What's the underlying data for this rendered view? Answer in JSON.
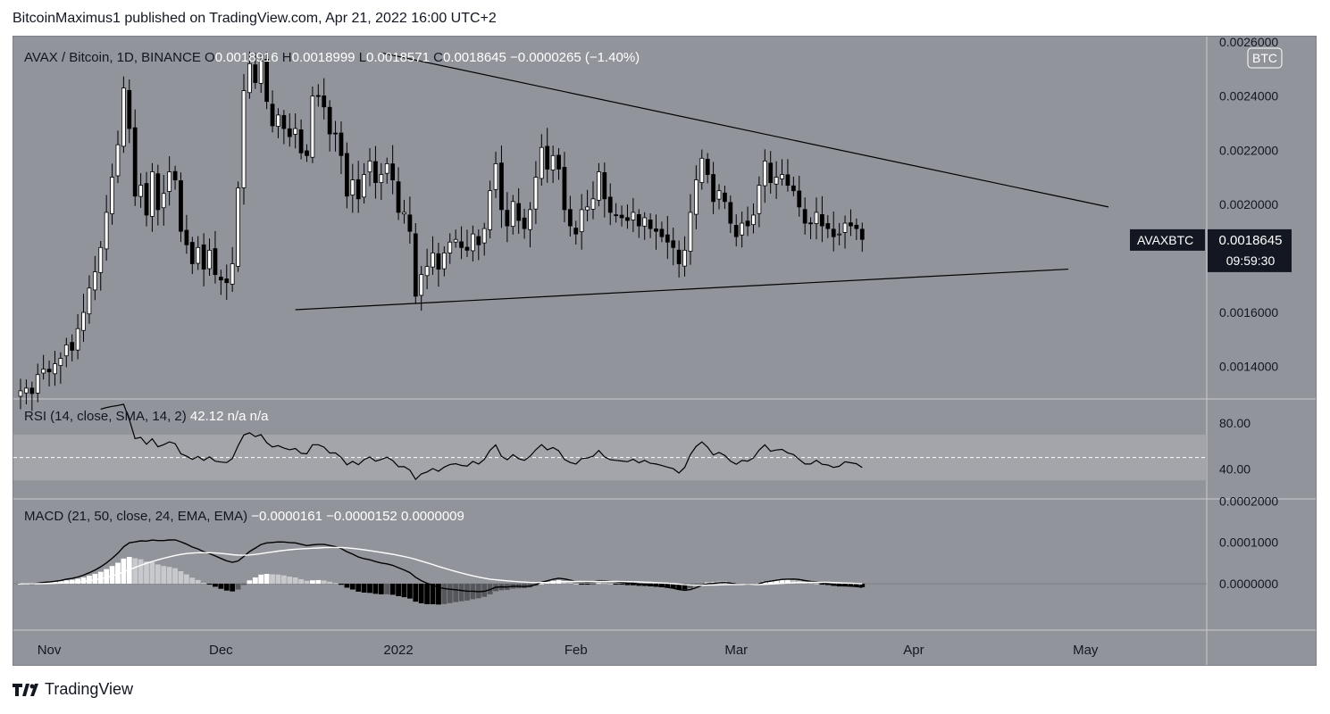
{
  "header": {
    "publisher_line": "BitcoinMaximus1 published on TradingView.com, Apr 21, 2022 16:00 UTC+2"
  },
  "footer": {
    "brand": "TradingView"
  },
  "colors": {
    "panel_bg": "#92949b",
    "up": "#ffffff",
    "down": "#000000",
    "text": "#131722",
    "hist_light": "#ffffff",
    "hist_dark": "#000000"
  },
  "chart_data": {
    "type": "candlestick",
    "symbol_line": "AVAX / Bitcoin, 1D, BINANCE",
    "ohlc": {
      "o_label": "O",
      "o": "0.0018916",
      "h_label": "H",
      "h": "0.0018999",
      "l_label": "L",
      "l": "0.0018571",
      "c_label": "C",
      "c": "0.0018645",
      "change": "−0.0000265 (−1.40%)"
    },
    "currency_badge": "BTC",
    "price_tag": {
      "symbol": "AVAXBTC",
      "price": "0.0018645",
      "countdown": "09:59:30"
    },
    "price_ticks": [
      "0.0026000",
      "0.0024000",
      "0.0022000",
      "0.0020000",
      "0.0016000",
      "0.0014000"
    ],
    "price_tick_values": [
      0.0026,
      0.0024,
      0.0022,
      0.002,
      0.0016,
      0.0014
    ],
    "price_range": [
      0.00128,
      0.00262
    ],
    "x_labels": [
      "Nov",
      "Dec",
      "2022",
      "Feb",
      "Mar",
      "Apr",
      "May"
    ],
    "x_label_index": [
      5,
      35,
      66,
      97,
      125,
      156,
      186
    ],
    "day_count": 201,
    "closes": [
      0.00131,
      0.00132,
      0.0013,
      0.00137,
      0.00139,
      0.00138,
      0.00141,
      0.00143,
      0.00148,
      0.00146,
      0.00154,
      0.0016,
      0.00169,
      0.00175,
      0.00184,
      0.00197,
      0.0021,
      0.00222,
      0.00243,
      0.00228,
      0.00203,
      0.00207,
      0.00196,
      0.00212,
      0.00198,
      0.00204,
      0.00212,
      0.00209,
      0.0019,
      0.00185,
      0.00178,
      0.00184,
      0.00176,
      0.00183,
      0.00174,
      0.00172,
      0.00171,
      0.00178,
      0.00206,
      0.00242,
      0.00252,
      0.00245,
      0.00253,
      0.00238,
      0.00229,
      0.00233,
      0.00228,
      0.00225,
      0.00228,
      0.00219,
      0.00218,
      0.0024,
      0.0024,
      0.00236,
      0.00226,
      0.00226,
      0.00218,
      0.00203,
      0.00209,
      0.00202,
      0.00211,
      0.00216,
      0.00208,
      0.00211,
      0.00215,
      0.00209,
      0.00197,
      0.00197,
      0.0019,
      0.00166,
      0.00174,
      0.00177,
      0.00182,
      0.00176,
      0.00182,
      0.00186,
      0.00187,
      0.00184,
      0.00183,
      0.00189,
      0.00185,
      0.00191,
      0.00205,
      0.00215,
      0.00198,
      0.00192,
      0.00201,
      0.00194,
      0.00191,
      0.00198,
      0.0021,
      0.00221,
      0.00213,
      0.00218,
      0.00213,
      0.00198,
      0.00192,
      0.00189,
      0.00198,
      0.00199,
      0.00202,
      0.00212,
      0.00202,
      0.00197,
      0.00196,
      0.00195,
      0.00194,
      0.00197,
      0.00192,
      0.00195,
      0.00191,
      0.0019,
      0.00188,
      0.00186,
      0.00184,
      0.00178,
      0.00183,
      0.00197,
      0.00209,
      0.00217,
      0.00211,
      0.00201,
      0.00205,
      0.00201,
      0.00193,
      0.00188,
      0.00193,
      0.00192,
      0.00196,
      0.00207,
      0.00216,
      0.00208,
      0.0021,
      0.00211,
      0.00207,
      0.00205,
      0.00199,
      0.00193,
      0.00193,
      0.00197,
      0.00192,
      0.00191,
      0.00188,
      0.00189,
      0.00193,
      0.00192,
      0.00191,
      0.00187
    ],
    "trendlines": [
      {
        "name": "descending-resistance",
        "from": {
          "day": 63,
          "price": 0.00256
        },
        "to": {
          "day": 190,
          "price": 0.00199
        }
      },
      {
        "name": "ascending-support",
        "from": {
          "day": 48,
          "price": 0.00161
        },
        "to": {
          "day": 183,
          "price": 0.00176
        }
      }
    ],
    "rsi": {
      "label": "RSI (14, close, SMA, 14, 2)",
      "value": "42.12",
      "na1": "n/a",
      "na2": "n/a",
      "ticks": [
        "80.00",
        "40.00"
      ],
      "tick_values": [
        80,
        40
      ],
      "band": [
        30,
        70
      ],
      "midline": 50,
      "range": [
        14,
        101
      ]
    },
    "macd": {
      "label": "MACD (21, 50, close, 24, EMA, EMA)",
      "values": [
        "−0.0000161",
        "−0.0000152",
        "0.0000009"
      ],
      "ticks": [
        "0.0002000",
        "0.0001000",
        "0.0000000"
      ],
      "tick_values": [
        0.0002,
        0.0001,
        0
      ],
      "range": [
        -0.000112,
        0.000205
      ]
    }
  }
}
